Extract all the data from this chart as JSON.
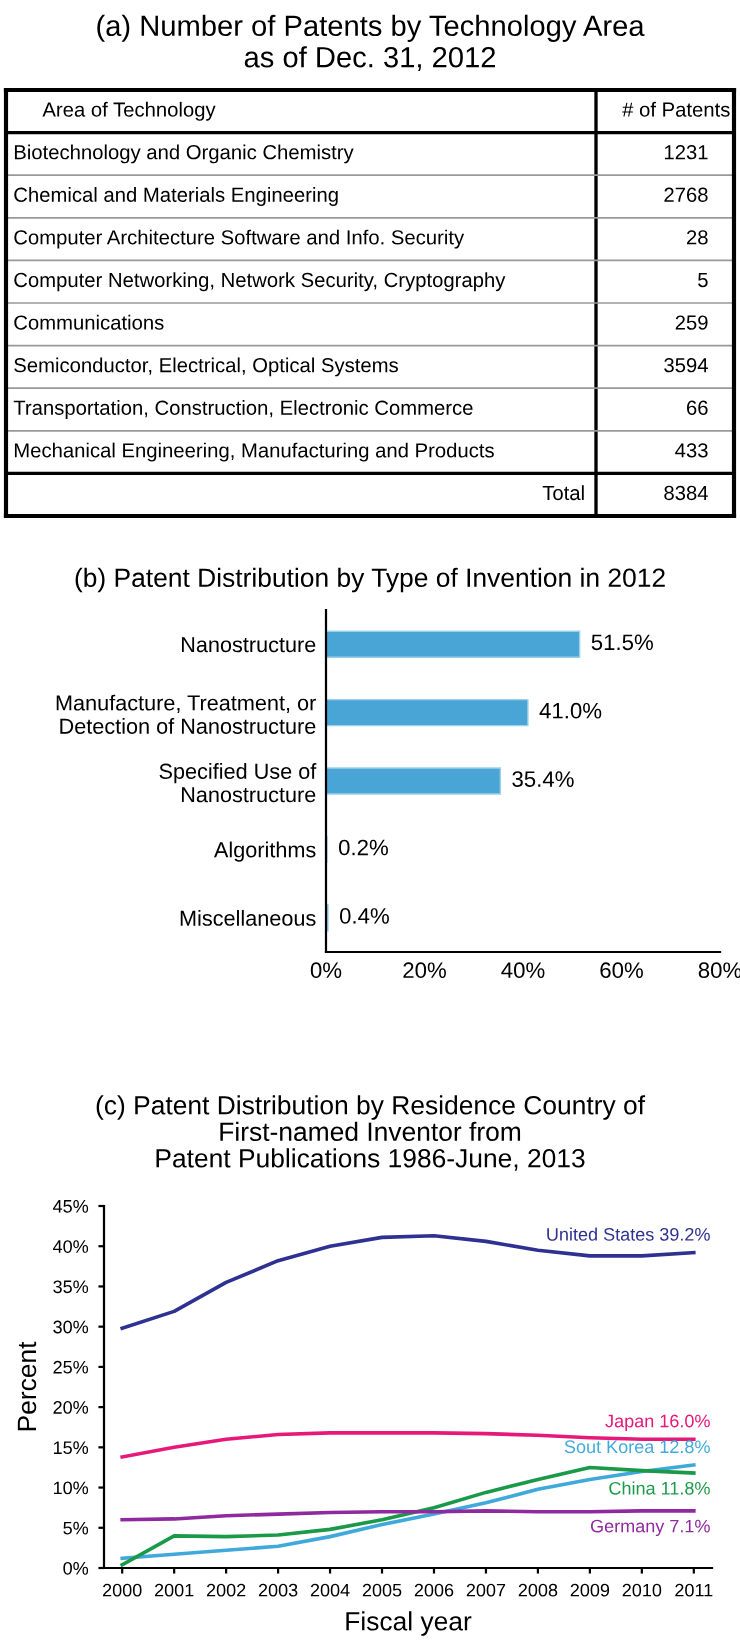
{
  "chart_data": [
    {
      "type": "other",
      "title": "(a) Number of Patents by Technology Area\nas of Dec. 31, 2012",
      "categories": [
        "Biotechnology and Organic Chemistry",
        "Chemical and Materials Engineering",
        "Computer Architecture Software and Info. Security",
        "Computer Networking, Network Security, Cryptography",
        "Communications",
        "Semiconductor, Electrical, Optical Systems",
        "Transportation, Construction, Electronic Commerce",
        "Mechanical Engineering, Manufacturing and Products"
      ],
      "values": [
        1231,
        2768,
        28,
        5,
        259,
        3594,
        66,
        433
      ],
      "data_labels": true,
      "annotations": [
        "Area of Technology",
        "# of Patents",
        "Total",
        "8384"
      ]
    },
    {
      "type": "bar",
      "orientation": "horizontal",
      "title": "(b) Patent Distribution by Type of Invention in 2012",
      "categories": [
        "Nanostructure",
        "Manufacture, Treatment, or\nDetection of Nanostructure",
        "Specified Use of\nNanostructure",
        "Algorithms",
        "Miscellaneous"
      ],
      "values": [
        51.5,
        41.0,
        35.4,
        0.2,
        0.4
      ],
      "color": "#48a5d6",
      "value_labels": [
        "51.5%",
        "41.0%",
        "35.4%",
        "0.2%",
        "0.4%"
      ],
      "xlim": [
        0,
        80
      ],
      "xticks": [
        {
          "value": 0,
          "label": "0%"
        },
        {
          "value": 20,
          "label": "20%"
        },
        {
          "value": 40,
          "label": "40%"
        },
        {
          "value": 60,
          "label": "60%"
        },
        {
          "value": 80,
          "label": "80%"
        }
      ],
      "grid": false,
      "legend": false
    },
    {
      "type": "line",
      "title": "(c) Patent Distribution by Residence Country of\nFirst-named Inventor from\nPatent Publications 1986-June, 2013",
      "xlabel": "Fiscal year",
      "ylabel": "Percent",
      "categories": [
        "2000",
        "2001",
        "2002",
        "2003",
        "2004",
        "2005",
        "2006",
        "2007",
        "2008",
        "2009",
        "2010",
        "2011"
      ],
      "series": [
        {
          "name": "United States 39.2%",
          "color": "#2e3192",
          "values": [
            29.8,
            31.9,
            35.5,
            38.2,
            40.0,
            41.1,
            41.3,
            40.6,
            39.5,
            38.8,
            38.8,
            39.2
          ]
        },
        {
          "name": "Japan 16.0%",
          "color": "#e6197a",
          "values": [
            13.8,
            15.0,
            16.0,
            16.6,
            16.8,
            16.8,
            16.8,
            16.7,
            16.5,
            16.2,
            16.0,
            16.0
          ]
        },
        {
          "name": "Sout Korea 12.8%",
          "color": "#3fa9dc",
          "values": [
            1.2,
            1.7,
            2.2,
            2.7,
            3.9,
            5.4,
            6.7,
            8.1,
            9.8,
            11.0,
            12.0,
            12.8
          ]
        },
        {
          "name": "China 11.8%",
          "color": "#1a9a48",
          "values": [
            0.4,
            4.0,
            3.9,
            4.1,
            4.8,
            6.0,
            7.5,
            9.4,
            11.0,
            12.5,
            12.1,
            11.8
          ]
        },
        {
          "name": "Germany 7.1%",
          "color": "#8e2a9e",
          "values": [
            6.0,
            6.1,
            6.5,
            6.7,
            6.9,
            7.0,
            7.0,
            7.1,
            7.0,
            7.0,
            7.1,
            7.1
          ]
        }
      ],
      "ylim": [
        0,
        45
      ],
      "yticks": [
        {
          "value": 0,
          "label": "0%"
        },
        {
          "value": 5,
          "label": "5%"
        },
        {
          "value": 10,
          "label": "10%"
        },
        {
          "value": 15,
          "label": "15%"
        },
        {
          "value": 20,
          "label": "20%"
        },
        {
          "value": 25,
          "label": "25%"
        },
        {
          "value": 30,
          "label": "30%"
        },
        {
          "value": 35,
          "label": "35%"
        },
        {
          "value": 40,
          "label": "40%"
        },
        {
          "value": 45,
          "label": "45%"
        }
      ],
      "grid": false,
      "legend": false,
      "marker": "none",
      "line_style": "solid"
    }
  ]
}
